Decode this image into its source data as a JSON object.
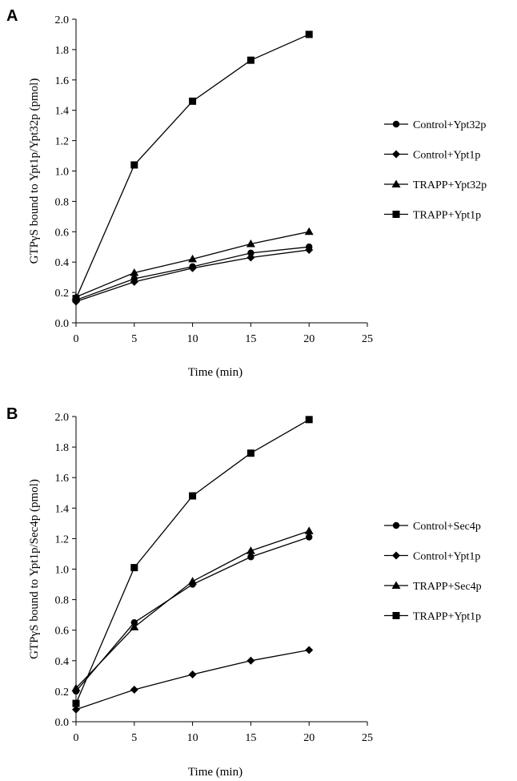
{
  "chart_data": [
    {
      "type": "line",
      "panel_label": "A",
      "xlabel": "Time (min)",
      "ylabel": "GTPγS bound to Ypt1p/Ypt32p (pmol)",
      "xlim": [
        0,
        25
      ],
      "ylim": [
        0,
        2.0
      ],
      "xticks": [
        "0",
        "5",
        "10",
        "15",
        "20",
        "25"
      ],
      "yticks": [
        "0.0",
        "0.2",
        "0.4",
        "0.6",
        "0.8",
        "1.0",
        "1.2",
        "1.4",
        "1.6",
        "1.8",
        "2.0"
      ],
      "legend_position": "right",
      "x": [
        0,
        5,
        10,
        15,
        20
      ],
      "series": [
        {
          "name": "Control+Ypt32p",
          "marker": "circle",
          "values": [
            0.15,
            0.29,
            0.37,
            0.46,
            0.5
          ]
        },
        {
          "name": "Control+Ypt1p",
          "marker": "diamond",
          "values": [
            0.14,
            0.27,
            0.36,
            0.43,
            0.48
          ]
        },
        {
          "name": "TRAPP+Ypt32p",
          "marker": "triangle",
          "values": [
            0.17,
            0.33,
            0.42,
            0.52,
            0.6
          ]
        },
        {
          "name": "TRAPP+Ypt1p",
          "marker": "square",
          "values": [
            0.16,
            1.04,
            1.46,
            1.73,
            1.9
          ]
        }
      ]
    },
    {
      "type": "line",
      "panel_label": "B",
      "xlabel": "Time (min)",
      "ylabel": "GTPγS bound to Ypt1p/Sec4p (pmol)",
      "xlim": [
        0,
        25
      ],
      "ylim": [
        0,
        2.0
      ],
      "xticks": [
        "0",
        "5",
        "10",
        "15",
        "20",
        "25"
      ],
      "yticks": [
        "0.0",
        "0.2",
        "0.4",
        "0.6",
        "0.8",
        "1.0",
        "1.2",
        "1.4",
        "1.6",
        "1.8",
        "2.0"
      ],
      "legend_position": "right",
      "x": [
        0,
        5,
        10,
        15,
        20
      ],
      "series": [
        {
          "name": "Control+Sec4p",
          "marker": "circle",
          "values": [
            0.2,
            0.65,
            0.9,
            1.08,
            1.21
          ]
        },
        {
          "name": "Control+Ypt1p",
          "marker": "diamond",
          "values": [
            0.08,
            0.21,
            0.31,
            0.4,
            0.47
          ]
        },
        {
          "name": "TRAPP+Sec4p",
          "marker": "triangle",
          "values": [
            0.22,
            0.62,
            0.92,
            1.12,
            1.25
          ]
        },
        {
          "name": "TRAPP+Ypt1p",
          "marker": "square",
          "values": [
            0.12,
            1.01,
            1.48,
            1.76,
            1.98
          ]
        }
      ]
    }
  ]
}
